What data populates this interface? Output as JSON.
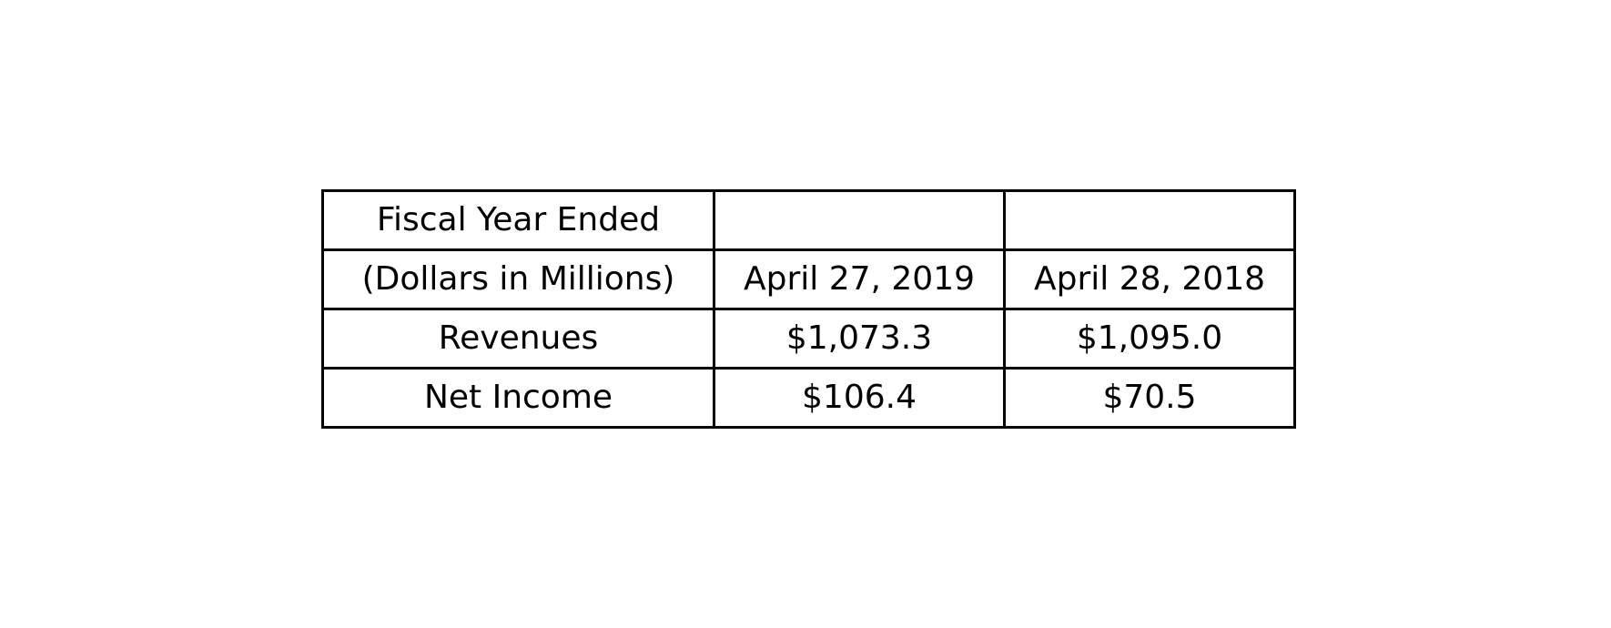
{
  "chart_data": {
    "type": "table",
    "rows": [
      [
        "Fiscal Year Ended",
        "",
        ""
      ],
      [
        "(Dollars in Millions)",
        "April 27, 2019",
        "April 28, 2018"
      ],
      [
        "Revenues",
        "$1,073.3",
        "$1,095.0"
      ],
      [
        "Net Income",
        "$106.4",
        "$70.5"
      ]
    ]
  },
  "colors": {
    "border": "#000000",
    "background": "#ffffff",
    "text": "#000000"
  }
}
